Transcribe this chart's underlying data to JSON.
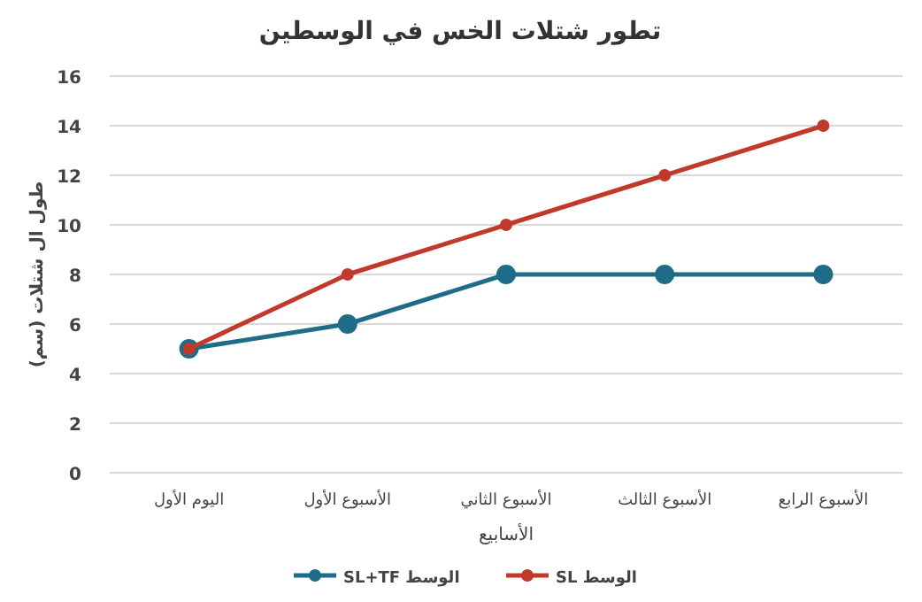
{
  "chart_data": {
    "type": "line",
    "title": "تطور شتلات الخس في الوسطين",
    "xlabel": "الأسابيع",
    "ylabel": "طول ال شتلات (سم)",
    "categories": [
      "اليوم الأول",
      "الأسبوع الأول",
      "الأسبوع الثاني",
      "الأسبوع الثالث",
      "الأسبوع الرابع"
    ],
    "series": [
      {
        "name": "الوسط SL+TF",
        "color": "#1f6b8a",
        "values": [
          5,
          6,
          8,
          8,
          8
        ]
      },
      {
        "name": "الوسط SL",
        "color": "#c0392b",
        "values": [
          5,
          8,
          10,
          12,
          14
        ]
      }
    ],
    "ylim": [
      0,
      16
    ],
    "yticks": [
      0,
      2,
      4,
      6,
      8,
      10,
      12,
      14,
      16
    ],
    "grid": "y",
    "legend": "bottom",
    "marker": "circle",
    "line_style": "solid"
  }
}
